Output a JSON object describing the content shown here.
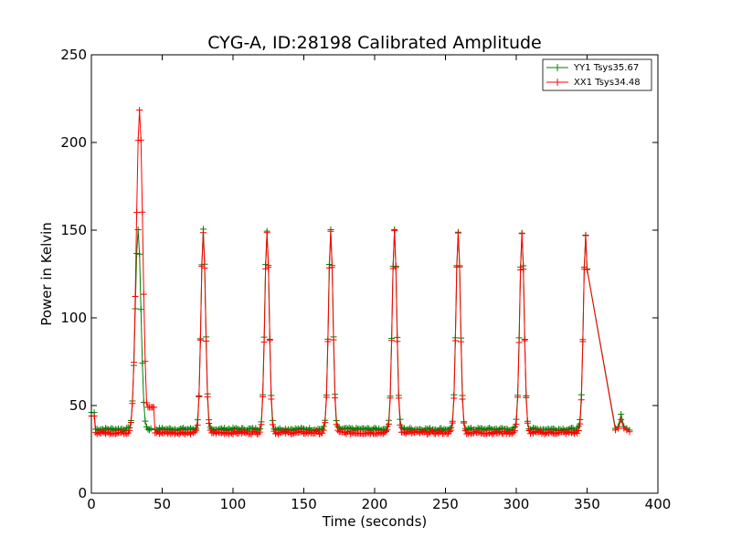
{
  "chart_data": {
    "type": "line",
    "title": "CYG-A, ID:28198 Calibrated Amplitude",
    "xlabel": "Time (seconds)",
    "ylabel": "Power in Kelvin",
    "xlim": [
      0,
      400
    ],
    "ylim": [
      0,
      250
    ],
    "xticks": [
      0,
      50,
      100,
      150,
      200,
      250,
      300,
      350,
      400
    ],
    "yticks": [
      0,
      50,
      100,
      150,
      200,
      250
    ],
    "grid": false,
    "legend_position": "top-right",
    "marker": "plus",
    "series": [
      {
        "name": "YY1 Tsys35.67",
        "color": "#008000",
        "baseline": 36.5,
        "start": {
          "x": [
            0,
            2
          ],
          "y": [
            46,
            46
          ]
        },
        "end": {
          "x": [
            370,
            372,
            374,
            376,
            378,
            380
          ],
          "y": [
            37,
            38,
            45,
            38,
            37,
            36
          ]
        },
        "segments_x": [
          [
            3,
            42
          ],
          [
            45,
            350
          ]
        ],
        "peaks": [
          {
            "x": 33,
            "height": 150,
            "sigma": 2.0
          },
          {
            "x": 79,
            "height": 150,
            "sigma": 1.6
          },
          {
            "x": 124,
            "height": 150,
            "sigma": 1.6
          },
          {
            "x": 169,
            "height": 150,
            "sigma": 1.6
          },
          {
            "x": 214,
            "height": 150,
            "sigma": 1.6
          },
          {
            "x": 259,
            "height": 149,
            "sigma": 1.6
          },
          {
            "x": 304,
            "height": 149,
            "sigma": 1.6
          },
          {
            "x": 349,
            "height": 148,
            "sigma": 1.6
          }
        ]
      },
      {
        "name": "XX1 Tsys34.48",
        "color": "#ff0000",
        "baseline": 34.5,
        "start": {
          "x": [
            0,
            2
          ],
          "y": [
            44,
            44
          ]
        },
        "end": {
          "x": [
            370,
            372,
            374,
            376,
            378,
            380
          ],
          "y": [
            36,
            37,
            42,
            37,
            36,
            35
          ]
        },
        "segments_x": [
          [
            3,
            44
          ],
          [
            44,
            350
          ]
        ],
        "shelf": {
          "x": [
            38,
            44
          ],
          "y": 49
        },
        "peaks": [
          {
            "x": 34,
            "height": 218,
            "sigma": 2.3
          },
          {
            "x": 79,
            "height": 149,
            "sigma": 1.6
          },
          {
            "x": 124,
            "height": 149,
            "sigma": 1.6
          },
          {
            "x": 169,
            "height": 149,
            "sigma": 1.6
          },
          {
            "x": 214,
            "height": 149,
            "sigma": 1.6
          },
          {
            "x": 259,
            "height": 149,
            "sigma": 1.6
          },
          {
            "x": 304,
            "height": 148,
            "sigma": 1.6
          },
          {
            "x": 349,
            "height": 147,
            "sigma": 1.6
          }
        ]
      }
    ]
  }
}
